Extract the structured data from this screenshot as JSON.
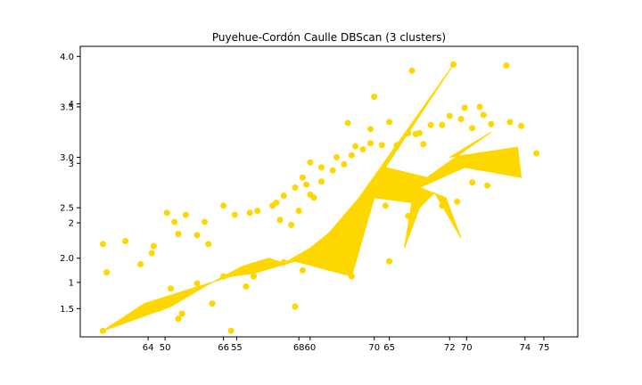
{
  "chart_data": {
    "type": "scatter",
    "title": "Puyehue-Cordón Caulle DBScan (3 clusters)",
    "xlabel": "",
    "ylabel": "",
    "grid": false,
    "legend": "none",
    "color": "#FFD700",
    "xlim": [
      62.2,
      75.4
    ],
    "ylim": [
      1.22,
      4.1
    ],
    "x_ticks_a": [
      {
        "value": 64,
        "label": "64"
      },
      {
        "value": 66,
        "label": "66"
      },
      {
        "value": 68,
        "label": "68"
      },
      {
        "value": 70,
        "label": "70"
      },
      {
        "value": 72,
        "label": "72"
      },
      {
        "value": 74,
        "label": "74"
      }
    ],
    "x_ticks_b": [
      {
        "value": 64.45,
        "label": "50"
      },
      {
        "value": 66.35,
        "label": "55"
      },
      {
        "value": 68.3,
        "label": "60"
      },
      {
        "value": 70.4,
        "label": "65"
      },
      {
        "value": 72.45,
        "label": "70"
      },
      {
        "value": 74.5,
        "label": "75"
      }
    ],
    "y_ticks_a": [
      {
        "value": 4.0,
        "label": "4.0"
      },
      {
        "value": 3.5,
        "label": "3.5"
      },
      {
        "value": 3.0,
        "label": "3.0"
      },
      {
        "value": 2.5,
        "label": "2.5"
      },
      {
        "value": 2.0,
        "label": "2.0"
      },
      {
        "value": 1.5,
        "label": "1.5"
      }
    ],
    "y_ticks_b": [
      {
        "value": 3.53,
        "label": "4"
      },
      {
        "value": 2.94,
        "label": "3"
      },
      {
        "value": 2.35,
        "label": "2"
      },
      {
        "value": 1.76,
        "label": "1"
      }
    ],
    "polygon": [
      [
        62.8,
        1.28
      ],
      [
        64.6,
        1.52
      ],
      [
        65.5,
        1.72
      ],
      [
        66.5,
        1.92
      ],
      [
        67.2,
        2.0
      ],
      [
        67.6,
        1.95
      ],
      [
        68.3,
        2.1
      ],
      [
        68.8,
        2.25
      ],
      [
        69.6,
        2.6
      ],
      [
        72.1,
        3.92
      ],
      [
        70.3,
        2.9
      ],
      [
        71.4,
        2.8
      ],
      [
        73.1,
        3.25
      ],
      [
        72.0,
        3.0
      ],
      [
        73.8,
        3.1
      ],
      [
        73.9,
        2.8
      ],
      [
        72.4,
        2.9
      ],
      [
        71.2,
        2.7
      ],
      [
        71.9,
        2.6
      ],
      [
        72.3,
        2.2
      ],
      [
        71.6,
        2.65
      ],
      [
        71.2,
        2.5
      ],
      [
        70.8,
        2.1
      ],
      [
        71.0,
        2.55
      ],
      [
        70.0,
        2.6
      ],
      [
        69.4,
        1.82
      ],
      [
        67.9,
        1.97
      ],
      [
        66.8,
        1.85
      ],
      [
        66.2,
        1.82
      ],
      [
        65.0,
        1.68
      ],
      [
        63.9,
        1.55
      ],
      [
        62.8,
        1.28
      ]
    ],
    "points": [
      [
        62.8,
        2.14
      ],
      [
        62.9,
        1.86
      ],
      [
        63.4,
        2.17
      ],
      [
        63.8,
        1.94
      ],
      [
        64.1,
        2.05
      ],
      [
        64.15,
        2.12
      ],
      [
        64.5,
        2.45
      ],
      [
        64.7,
        2.36
      ],
      [
        64.8,
        2.24
      ],
      [
        65.0,
        2.43
      ],
      [
        65.3,
        2.23
      ],
      [
        65.5,
        2.36
      ],
      [
        65.6,
        2.14
      ],
      [
        62.8,
        1.28
      ],
      [
        64.3,
        1.5
      ],
      [
        64.6,
        1.7
      ],
      [
        64.8,
        1.4
      ],
      [
        64.9,
        1.45
      ],
      [
        65.3,
        1.75
      ],
      [
        65.7,
        1.55
      ],
      [
        66.0,
        1.82
      ],
      [
        66.2,
        1.28
      ],
      [
        66.6,
        1.72
      ],
      [
        66.8,
        1.82
      ],
      [
        67.6,
        1.96
      ],
      [
        67.9,
        1.52
      ],
      [
        68.1,
        1.88
      ],
      [
        69.4,
        1.82
      ],
      [
        70.4,
        1.97
      ],
      [
        66.0,
        2.52
      ],
      [
        66.3,
        2.43
      ],
      [
        66.7,
        2.45
      ],
      [
        66.9,
        2.47
      ],
      [
        67.3,
        2.52
      ],
      [
        67.4,
        2.55
      ],
      [
        67.6,
        2.62
      ],
      [
        67.9,
        2.7
      ],
      [
        68.2,
        2.73
      ],
      [
        68.4,
        2.6
      ],
      [
        68.6,
        2.76
      ],
      [
        68.0,
        2.47
      ],
      [
        67.8,
        2.33
      ],
      [
        67.5,
        2.38
      ],
      [
        68.1,
        2.8
      ],
      [
        68.3,
        2.95
      ],
      [
        68.6,
        2.9
      ],
      [
        68.9,
        2.87
      ],
      [
        69.2,
        2.93
      ],
      [
        69.4,
        3.02
      ],
      [
        69.7,
        3.08
      ],
      [
        69.9,
        3.14
      ],
      [
        70.2,
        3.12
      ],
      [
        69.5,
        3.11
      ],
      [
        69.0,
        3.0
      ],
      [
        68.3,
        2.63
      ],
      [
        69.3,
        3.34
      ],
      [
        69.9,
        3.28
      ],
      [
        70.4,
        3.35
      ],
      [
        70.6,
        3.12
      ],
      [
        70.9,
        3.24
      ],
      [
        71.2,
        3.24
      ],
      [
        71.5,
        3.32
      ],
      [
        71.8,
        3.32
      ],
      [
        72.0,
        3.41
      ],
      [
        72.3,
        3.38
      ],
      [
        72.6,
        3.29
      ],
      [
        72.9,
        3.42
      ],
      [
        73.1,
        3.33
      ],
      [
        73.6,
        3.35
      ],
      [
        73.9,
        3.31
      ],
      [
        74.3,
        3.04
      ],
      [
        72.4,
        3.49
      ],
      [
        71.8,
        3.32
      ],
      [
        71.1,
        3.23
      ],
      [
        70.3,
        2.52
      ],
      [
        69.6,
        2.32
      ],
      [
        70.9,
        2.42
      ],
      [
        71.8,
        2.52
      ],
      [
        72.2,
        2.56
      ],
      [
        73.2,
        2.9
      ],
      [
        70.0,
        3.6
      ],
      [
        71.0,
        3.86
      ],
      [
        72.1,
        3.92
      ],
      [
        73.5,
        3.91
      ],
      [
        72.8,
        3.5
      ],
      [
        71.3,
        3.13
      ],
      [
        73.0,
        2.72
      ],
      [
        72.6,
        2.75
      ]
    ]
  }
}
